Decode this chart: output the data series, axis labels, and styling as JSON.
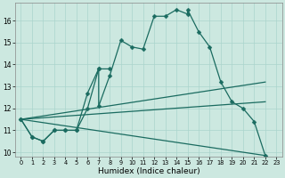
{
  "title": "",
  "xlabel": "Humidex (Indice chaleur)",
  "xlim": [
    -0.5,
    23.5
  ],
  "ylim": [
    9.8,
    16.8
  ],
  "yticks": [
    10,
    11,
    12,
    13,
    14,
    15,
    16
  ],
  "xticks": [
    0,
    1,
    2,
    3,
    4,
    5,
    6,
    7,
    8,
    9,
    10,
    11,
    12,
    13,
    14,
    15,
    16,
    17,
    18,
    19,
    20,
    21,
    22,
    23
  ],
  "background_color": "#cce8e0",
  "grid_color": "#aad4cc",
  "line_color": "#1a6b60",
  "series1_x": [
    0,
    1,
    2,
    3,
    4,
    5,
    6,
    7,
    7,
    8,
    9,
    10,
    11,
    12,
    13,
    14,
    15,
    15,
    16,
    17,
    18,
    19,
    20,
    21,
    22
  ],
  "series1_y": [
    11.5,
    10.7,
    10.5,
    11.0,
    11.0,
    11.0,
    12.7,
    13.8,
    12.1,
    13.5,
    15.1,
    14.8,
    14.7,
    16.2,
    16.2,
    16.5,
    16.3,
    16.5,
    15.5,
    14.8,
    13.2,
    12.3,
    12.0,
    11.4,
    9.85
  ],
  "series2_x": [
    0,
    1,
    2,
    3,
    4,
    5,
    6,
    7,
    8
  ],
  "series2_y": [
    11.5,
    10.7,
    10.5,
    11.0,
    11.0,
    11.0,
    12.0,
    13.8,
    13.8
  ],
  "series3_x": [
    0,
    22
  ],
  "series3_y": [
    11.5,
    13.2
  ],
  "series4_x": [
    0,
    22
  ],
  "series4_y": [
    11.5,
    12.3
  ],
  "series5_x": [
    0,
    22
  ],
  "series5_y": [
    11.5,
    9.85
  ]
}
